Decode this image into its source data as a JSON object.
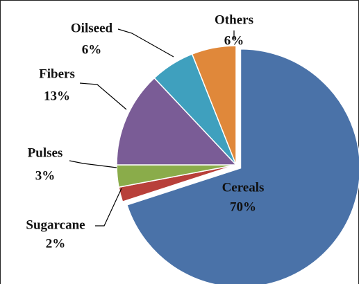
{
  "chart_data": {
    "type": "pie",
    "categories": [
      "Cereals",
      "Sugarcane",
      "Pulses",
      "Fibers",
      "Oilseed",
      "Others"
    ],
    "values": [
      70,
      2,
      3,
      13,
      6,
      6
    ],
    "value_labels": [
      "70%",
      "2%",
      "3%",
      "13%",
      "6%",
      "6%"
    ],
    "colors": [
      "#4a72a8",
      "#b8403a",
      "#8aac4a",
      "#7a5c96",
      "#3fa0be",
      "#e0883a"
    ],
    "exploded": "Cereals"
  }
}
